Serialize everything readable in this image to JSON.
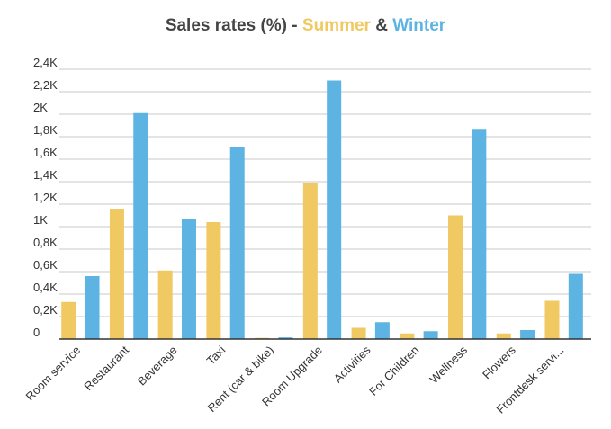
{
  "title": {
    "prefix": "Sales rates (%) -",
    "series1": "Summer",
    "joiner": "&",
    "series2": "Winter"
  },
  "chart_data": {
    "type": "bar",
    "title": "Sales rates (%) - Summer & Winter",
    "categories": [
      "Room service",
      "Restaurant",
      "Beverage",
      "Taxi",
      "Rent (car & bike)",
      "Room Upgrade",
      "Activities",
      "For Children",
      "Wellness",
      "Flowers",
      "Frontdesk servi..."
    ],
    "series": [
      {
        "name": "Summer",
        "color": "#f0c962",
        "values": [
          330,
          1160,
          610,
          1040,
          10,
          1390,
          100,
          50,
          1100,
          50,
          340
        ]
      },
      {
        "name": "Winter",
        "color": "#5db4e2",
        "values": [
          560,
          2010,
          1070,
          1710,
          15,
          2300,
          150,
          70,
          1870,
          80,
          580
        ]
      }
    ],
    "yticks": [
      "0",
      "0,2K",
      "0,4K",
      "0,6K",
      "0,8K",
      "1K",
      "1,2K",
      "1,4K",
      "1,6K",
      "1,8K",
      "2K",
      "2,2K",
      "2,4K"
    ],
    "ylim": [
      0,
      2400
    ],
    "grid": true,
    "legend": "in title"
  }
}
